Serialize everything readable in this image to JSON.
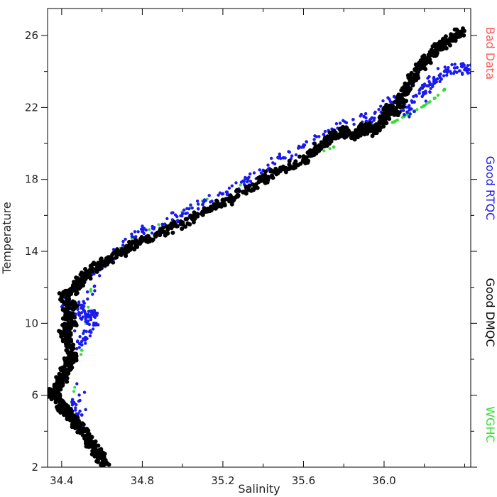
{
  "chart_data": {
    "type": "scatter",
    "title": "",
    "xlabel": "Salinity",
    "ylabel": "Temperature",
    "xlim": [
      34.33,
      36.43
    ],
    "ylim": [
      2,
      27.5
    ],
    "x_ticks": [
      34.4,
      34.8,
      35.2,
      35.6,
      36.0
    ],
    "x_tick_labels": [
      "34.4",
      "34.8",
      "35.2",
      "35.6",
      "36.0"
    ],
    "y_ticks": [
      2,
      6,
      10,
      14,
      18,
      22,
      26
    ],
    "y_tick_labels": [
      "2",
      "6",
      "10",
      "14",
      "18",
      "22",
      "26"
    ],
    "grid": false,
    "legend_position": "right-vertical",
    "series": [
      {
        "name": "WGHC",
        "color": "#33dd33",
        "points": [
          [
            34.45,
            5.6
          ],
          [
            34.5,
            8.5
          ],
          [
            34.56,
            13.0
          ],
          [
            34.75,
            14.7
          ],
          [
            35.1,
            16.8
          ],
          [
            35.5,
            18.7
          ],
          [
            35.75,
            19.8
          ],
          [
            35.95,
            20.8
          ],
          [
            36.05,
            21.2
          ],
          [
            36.1,
            21.5
          ],
          [
            36.15,
            21.8
          ],
          [
            36.2,
            22.1
          ],
          [
            36.25,
            22.5
          ],
          [
            36.3,
            23.0
          ]
        ]
      },
      {
        "name": "Good RTQC",
        "color": "#1a1aee",
        "points": [
          [
            34.42,
            5.2
          ],
          [
            34.46,
            5.6
          ],
          [
            34.5,
            4.9
          ],
          [
            34.42,
            11.4
          ],
          [
            34.47,
            10.5
          ],
          [
            34.5,
            11.0
          ],
          [
            34.52,
            10.4
          ],
          [
            34.55,
            10.5
          ],
          [
            34.56,
            10.0
          ],
          [
            34.52,
            9.2
          ],
          [
            34.5,
            8.8
          ],
          [
            34.55,
            12.7
          ],
          [
            34.6,
            13.1
          ],
          [
            34.65,
            13.6
          ],
          [
            34.72,
            14.3
          ],
          [
            34.8,
            15.1
          ],
          [
            34.9,
            15.5
          ],
          [
            35.0,
            16.1
          ],
          [
            35.1,
            16.6
          ],
          [
            35.2,
            17.2
          ],
          [
            35.3,
            17.9
          ],
          [
            35.4,
            18.5
          ],
          [
            35.5,
            19.2
          ],
          [
            35.6,
            19.8
          ],
          [
            35.7,
            20.5
          ],
          [
            35.8,
            20.9
          ],
          [
            35.9,
            21.5
          ],
          [
            35.95,
            21.0
          ],
          [
            36.0,
            22.0
          ],
          [
            36.05,
            22.6
          ],
          [
            36.1,
            21.6
          ],
          [
            36.15,
            22.3
          ],
          [
            36.2,
            22.8
          ],
          [
            36.22,
            23.2
          ],
          [
            36.25,
            23.5
          ],
          [
            36.3,
            24.0
          ],
          [
            36.35,
            24.2
          ],
          [
            36.4,
            24.1
          ],
          [
            36.42,
            24.1
          ]
        ]
      },
      {
        "name": "Good DMQC",
        "color": "#000000",
        "points": [
          [
            34.62,
            2.2
          ],
          [
            34.59,
            2.6
          ],
          [
            34.56,
            3.0
          ],
          [
            34.53,
            3.5
          ],
          [
            34.5,
            4.0
          ],
          [
            34.47,
            4.5
          ],
          [
            34.44,
            4.9
          ],
          [
            34.41,
            5.3
          ],
          [
            34.38,
            5.7
          ],
          [
            34.35,
            6.1
          ],
          [
            34.38,
            6.5
          ],
          [
            34.4,
            6.9
          ],
          [
            34.42,
            7.4
          ],
          [
            34.44,
            7.9
          ],
          [
            34.46,
            8.2
          ],
          [
            34.43,
            9.0
          ],
          [
            34.41,
            9.5
          ],
          [
            34.45,
            10.0
          ],
          [
            34.42,
            10.5
          ],
          [
            34.46,
            11.0
          ],
          [
            34.4,
            11.5
          ],
          [
            34.45,
            11.8
          ],
          [
            34.48,
            12.2
          ],
          [
            34.52,
            12.7
          ],
          [
            34.58,
            13.2
          ],
          [
            34.65,
            13.6
          ],
          [
            34.72,
            14.1
          ],
          [
            34.8,
            14.6
          ],
          [
            34.9,
            15.1
          ],
          [
            35.0,
            15.6
          ],
          [
            35.1,
            16.2
          ],
          [
            35.2,
            16.7
          ],
          [
            35.3,
            17.3
          ],
          [
            35.4,
            18.0
          ],
          [
            35.5,
            18.6
          ],
          [
            35.6,
            19.1
          ],
          [
            35.65,
            19.6
          ],
          [
            35.7,
            19.9
          ],
          [
            35.75,
            20.4
          ],
          [
            35.8,
            20.7
          ],
          [
            35.85,
            20.3
          ],
          [
            35.9,
            21.0
          ],
          [
            35.95,
            20.6
          ],
          [
            36.0,
            21.4
          ],
          [
            36.03,
            22.1
          ],
          [
            36.05,
            21.6
          ],
          [
            36.08,
            22.4
          ],
          [
            36.1,
            22.9
          ],
          [
            36.12,
            23.3
          ],
          [
            36.15,
            23.8
          ],
          [
            36.2,
            24.5
          ],
          [
            36.25,
            25.1
          ],
          [
            36.3,
            25.6
          ],
          [
            36.35,
            26.0
          ],
          [
            36.38,
            26.2
          ]
        ]
      },
      {
        "name": "Bad Data",
        "color": "#ff5555",
        "points": []
      }
    ]
  }
}
